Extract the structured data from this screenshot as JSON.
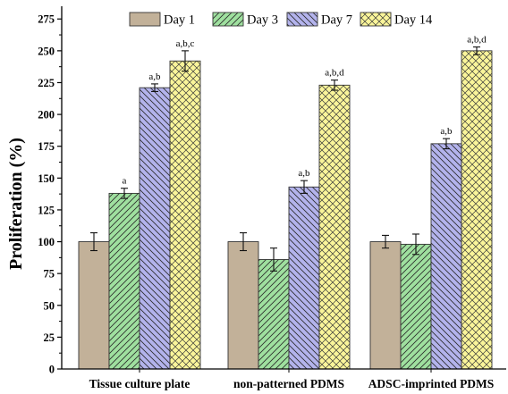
{
  "chart_data": {
    "type": "bar",
    "ylabel": "Proliferation (%)",
    "xlabel": "",
    "ylim": [
      0,
      285
    ],
    "yticks": [
      0,
      25,
      50,
      75,
      100,
      125,
      150,
      175,
      200,
      225,
      250,
      275
    ],
    "legend_position": "top",
    "grid": false,
    "categories": [
      "Tissue culture plate",
      "non-patterned PDMS",
      "ADSC-imprinted PDMS"
    ],
    "series": [
      {
        "name": "Day 1",
        "color": "#c2b199",
        "pattern": "solid",
        "values": [
          100,
          100,
          100
        ],
        "errors": [
          7,
          7,
          5
        ],
        "annotations": [
          "",
          "",
          ""
        ]
      },
      {
        "name": "Day 3",
        "color": "#9fe09f",
        "pattern": "diagonal-forward",
        "values": [
          138,
          86,
          98
        ],
        "errors": [
          4,
          9,
          8
        ],
        "annotations": [
          "a",
          "",
          ""
        ]
      },
      {
        "name": "Day 7",
        "color": "#b3b3ec",
        "pattern": "diagonal-back",
        "values": [
          221,
          143,
          177
        ],
        "errors": [
          3,
          5,
          4
        ],
        "annotations": [
          "a,b",
          "a,b",
          "a,b"
        ]
      },
      {
        "name": "Day 14",
        "color": "#faf59a",
        "pattern": "crosshatch",
        "values": [
          242,
          223,
          250
        ],
        "errors": [
          8,
          4,
          3
        ],
        "annotations": [
          "a,b,c",
          "a,b,d",
          "a,b,d"
        ]
      }
    ]
  }
}
